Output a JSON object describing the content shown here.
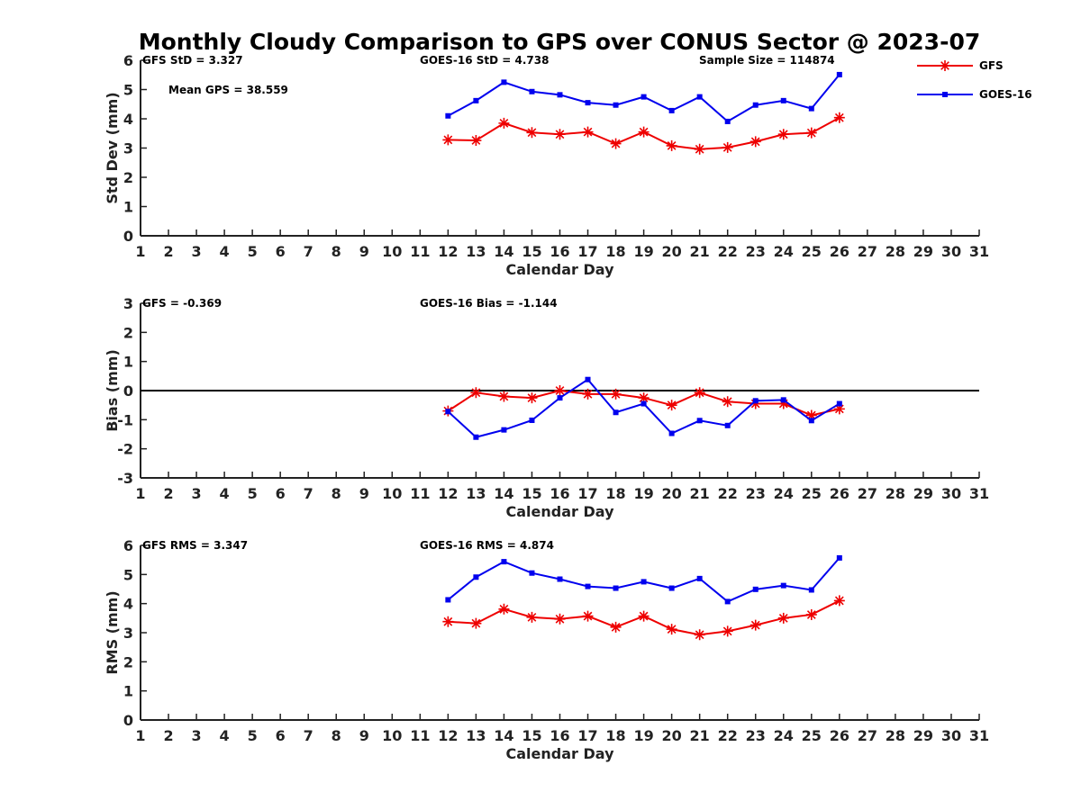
{
  "title": "Monthly Cloudy Comparison to GPS over CONUS Sector @ 2023-07",
  "colors": {
    "GFS": "#ee0000",
    "GOES-16": "#0000ee",
    "axis": "#222222"
  },
  "legend": {
    "placement": "top-right",
    "entries": [
      "GFS",
      "GOES-16"
    ]
  },
  "chart_data": [
    {
      "type": "line",
      "xlabel": "Calendar Day",
      "ylabel": "Std Dev (mm)",
      "xlim": [
        1,
        31
      ],
      "ylim": [
        0,
        6
      ],
      "x_ticks": [
        1,
        2,
        3,
        4,
        5,
        6,
        7,
        8,
        9,
        10,
        11,
        12,
        13,
        14,
        15,
        16,
        17,
        18,
        19,
        20,
        21,
        22,
        23,
        24,
        25,
        26,
        27,
        28,
        29,
        30,
        31
      ],
      "y_ticks": [
        0,
        1,
        2,
        3,
        4,
        5,
        6
      ],
      "zero_line": false,
      "annotations": [
        "GFS StD = 3.327",
        "GOES-16 StD = 4.738",
        "Sample Size = 114874",
        "Mean GPS = 38.559"
      ],
      "x": [
        12,
        13,
        14,
        15,
        16,
        17,
        18,
        19,
        20,
        21,
        22,
        23,
        24,
        25,
        26
      ],
      "series": [
        {
          "name": "GFS",
          "marker": "asterisk",
          "values": [
            3.28,
            3.26,
            3.85,
            3.53,
            3.47,
            3.55,
            3.15,
            3.55,
            3.08,
            2.96,
            3.02,
            3.22,
            3.47,
            3.52,
            4.04
          ]
        },
        {
          "name": "GOES-16",
          "marker": "square",
          "values": [
            4.1,
            4.62,
            5.25,
            4.93,
            4.82,
            4.55,
            4.47,
            4.75,
            4.28,
            4.75,
            3.91,
            4.47,
            4.62,
            4.35,
            5.51
          ]
        }
      ]
    },
    {
      "type": "line",
      "xlabel": "Calendar Day",
      "ylabel": "Bias (mm)",
      "xlim": [
        1,
        31
      ],
      "ylim": [
        -3,
        3
      ],
      "x_ticks": [
        1,
        2,
        3,
        4,
        5,
        6,
        7,
        8,
        9,
        10,
        11,
        12,
        13,
        14,
        15,
        16,
        17,
        18,
        19,
        20,
        21,
        22,
        23,
        24,
        25,
        26,
        27,
        28,
        29,
        30,
        31
      ],
      "y_ticks": [
        -3,
        -2,
        -1,
        0,
        1,
        2,
        3
      ],
      "zero_line": true,
      "annotations": [
        "GFS = -0.369",
        "GOES-16 Bias = -1.144"
      ],
      "x": [
        12,
        13,
        14,
        15,
        16,
        17,
        18,
        19,
        20,
        21,
        22,
        23,
        24,
        25,
        26
      ],
      "series": [
        {
          "name": "GFS",
          "marker": "asterisk",
          "values": [
            -0.7,
            -0.07,
            -0.2,
            -0.25,
            0.0,
            -0.12,
            -0.12,
            -0.25,
            -0.5,
            -0.07,
            -0.38,
            -0.45,
            -0.45,
            -0.85,
            -0.63
          ]
        },
        {
          "name": "GOES-16",
          "marker": "square",
          "values": [
            -0.72,
            -1.6,
            -1.35,
            -1.02,
            -0.25,
            0.38,
            -0.75,
            -0.45,
            -1.47,
            -1.03,
            -1.2,
            -0.35,
            -0.32,
            -1.03,
            -0.45
          ]
        }
      ]
    },
    {
      "type": "line",
      "xlabel": "Calendar Day",
      "ylabel": "RMS (mm)",
      "xlim": [
        1,
        31
      ],
      "ylim": [
        0,
        6
      ],
      "x_ticks": [
        1,
        2,
        3,
        4,
        5,
        6,
        7,
        8,
        9,
        10,
        11,
        12,
        13,
        14,
        15,
        16,
        17,
        18,
        19,
        20,
        21,
        22,
        23,
        24,
        25,
        26,
        27,
        28,
        29,
        30,
        31
      ],
      "y_ticks": [
        0,
        1,
        2,
        3,
        4,
        5,
        6
      ],
      "zero_line": false,
      "annotations": [
        "GFS RMS = 3.347",
        "GOES-16 RMS = 4.874"
      ],
      "x": [
        12,
        13,
        14,
        15,
        16,
        17,
        18,
        19,
        20,
        21,
        22,
        23,
        24,
        25,
        26
      ],
      "series": [
        {
          "name": "GFS",
          "marker": "asterisk",
          "values": [
            3.38,
            3.32,
            3.81,
            3.53,
            3.47,
            3.57,
            3.19,
            3.57,
            3.12,
            2.93,
            3.05,
            3.26,
            3.5,
            3.62,
            4.1
          ]
        },
        {
          "name": "GOES-16",
          "marker": "square",
          "values": [
            4.13,
            4.91,
            5.44,
            5.05,
            4.84,
            4.59,
            4.53,
            4.75,
            4.53,
            4.86,
            4.07,
            4.49,
            4.62,
            4.47,
            5.57
          ]
        }
      ]
    }
  ]
}
